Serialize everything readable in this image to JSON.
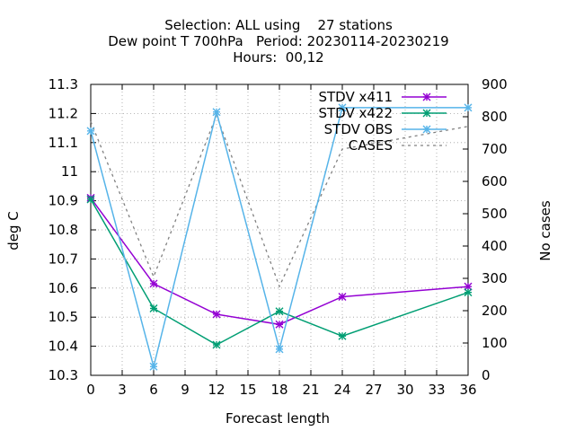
{
  "title_lines": [
    "Selection: ALL using    27 stations",
    "Dew point T 700hPa   Period: 20230114-20230219",
    "Hours:  00,12"
  ],
  "chart_data": {
    "type": "line",
    "xlabel": "Forecast length",
    "ylabel": "deg C",
    "y2label": "No cases",
    "xlim": [
      0,
      36
    ],
    "ylim": [
      10.3,
      11.3
    ],
    "y2lim": [
      0,
      900
    ],
    "xticks": [
      "0",
      "3",
      "6",
      "9",
      "12",
      "15",
      "18",
      "21",
      "24",
      "27",
      "30",
      "33",
      "36"
    ],
    "yticks": [
      "10.3",
      "10.4",
      "10.5",
      "10.6",
      "10.7",
      "10.8",
      "10.9",
      "11",
      "11.1",
      "11.2",
      "11.3"
    ],
    "y2ticks": [
      "0",
      "100",
      "200",
      "300",
      "400",
      "500",
      "600",
      "700",
      "800",
      "900"
    ],
    "grid": true,
    "legend_position": "top-right",
    "series": [
      {
        "name": "STDV x411",
        "axis": "y1",
        "color": "#9400d3",
        "marker": "x",
        "x": [
          0,
          6,
          12,
          18,
          24,
          36
        ],
        "values": [
          10.91,
          10.615,
          10.51,
          10.475,
          10.57,
          10.605
        ]
      },
      {
        "name": "STDV x422",
        "axis": "y1",
        "color": "#009e73",
        "marker": "x",
        "x": [
          0,
          6,
          12,
          18,
          24,
          36
        ],
        "values": [
          10.905,
          10.53,
          10.405,
          10.52,
          10.435,
          10.585
        ]
      },
      {
        "name": "STDV OBS",
        "axis": "y1",
        "color": "#56b4e9",
        "marker": "x",
        "x": [
          0,
          6,
          12,
          18,
          24,
          36
        ],
        "values": [
          11.14,
          10.33,
          11.205,
          10.39,
          11.22,
          11.22
        ]
      },
      {
        "name": "CASES",
        "axis": "y2",
        "color": "#808080",
        "dashed": true,
        "x": [
          0,
          6,
          12,
          18,
          24,
          36
        ],
        "values": [
          785,
          305,
          805,
          275,
          700,
          770
        ]
      }
    ]
  }
}
